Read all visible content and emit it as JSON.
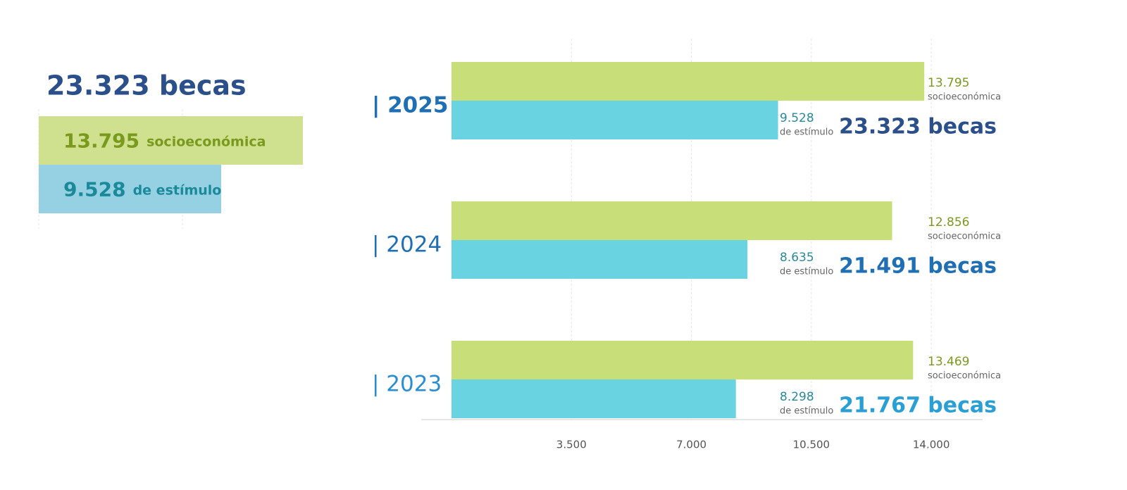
{
  "chart_data": [
    {
      "type": "summary-bar",
      "title": "23.323 becas",
      "series": [
        {
          "name": "socioeconómica",
          "color": "#cfe08f",
          "text_color": "#7a9a1e",
          "values": [
            13795
          ],
          "value_labels": [
            "13.795"
          ]
        },
        {
          "name": "de estímulo",
          "color": "#96d0e3",
          "text_color": "#1a8a9a",
          "values": [
            9528
          ],
          "value_labels": [
            "9.528"
          ]
        }
      ]
    },
    {
      "type": "bar",
      "orientation": "horizontal",
      "categories": [
        "| 2025",
        "| 2024",
        "| 2023"
      ],
      "category_colors": [
        "#1f6fb5",
        "#1f6fb5",
        "#2a8fd0"
      ],
      "series": [
        {
          "name": "socioeconómica",
          "color": "#c8de78",
          "text_color": "#7a9a1e",
          "values": [
            13795,
            12856,
            13469
          ],
          "value_labels": [
            "13.795",
            "12.856",
            "13.469"
          ]
        },
        {
          "name": "de estímulo",
          "color": "#6ad3e1",
          "text_color": "#2a8a9a",
          "values": [
            9528,
            8635,
            8298
          ],
          "value_labels": [
            "9.528",
            "8.635",
            "8.298"
          ]
        }
      ],
      "totals": [
        "23.323 becas",
        "21.491 becas",
        "21.767 becas"
      ],
      "total_colors": [
        "#2b4f8a",
        "#1f6fb5",
        "#2a9fd6"
      ],
      "xlim": [
        0,
        15600
      ],
      "xticks": [
        {
          "value": 3500,
          "label": "3.500"
        },
        {
          "value": 7000,
          "label": "7.000"
        },
        {
          "value": 10500,
          "label": "10.500"
        },
        {
          "value": 14000,
          "label": "14.000"
        }
      ],
      "grid": true
    }
  ]
}
